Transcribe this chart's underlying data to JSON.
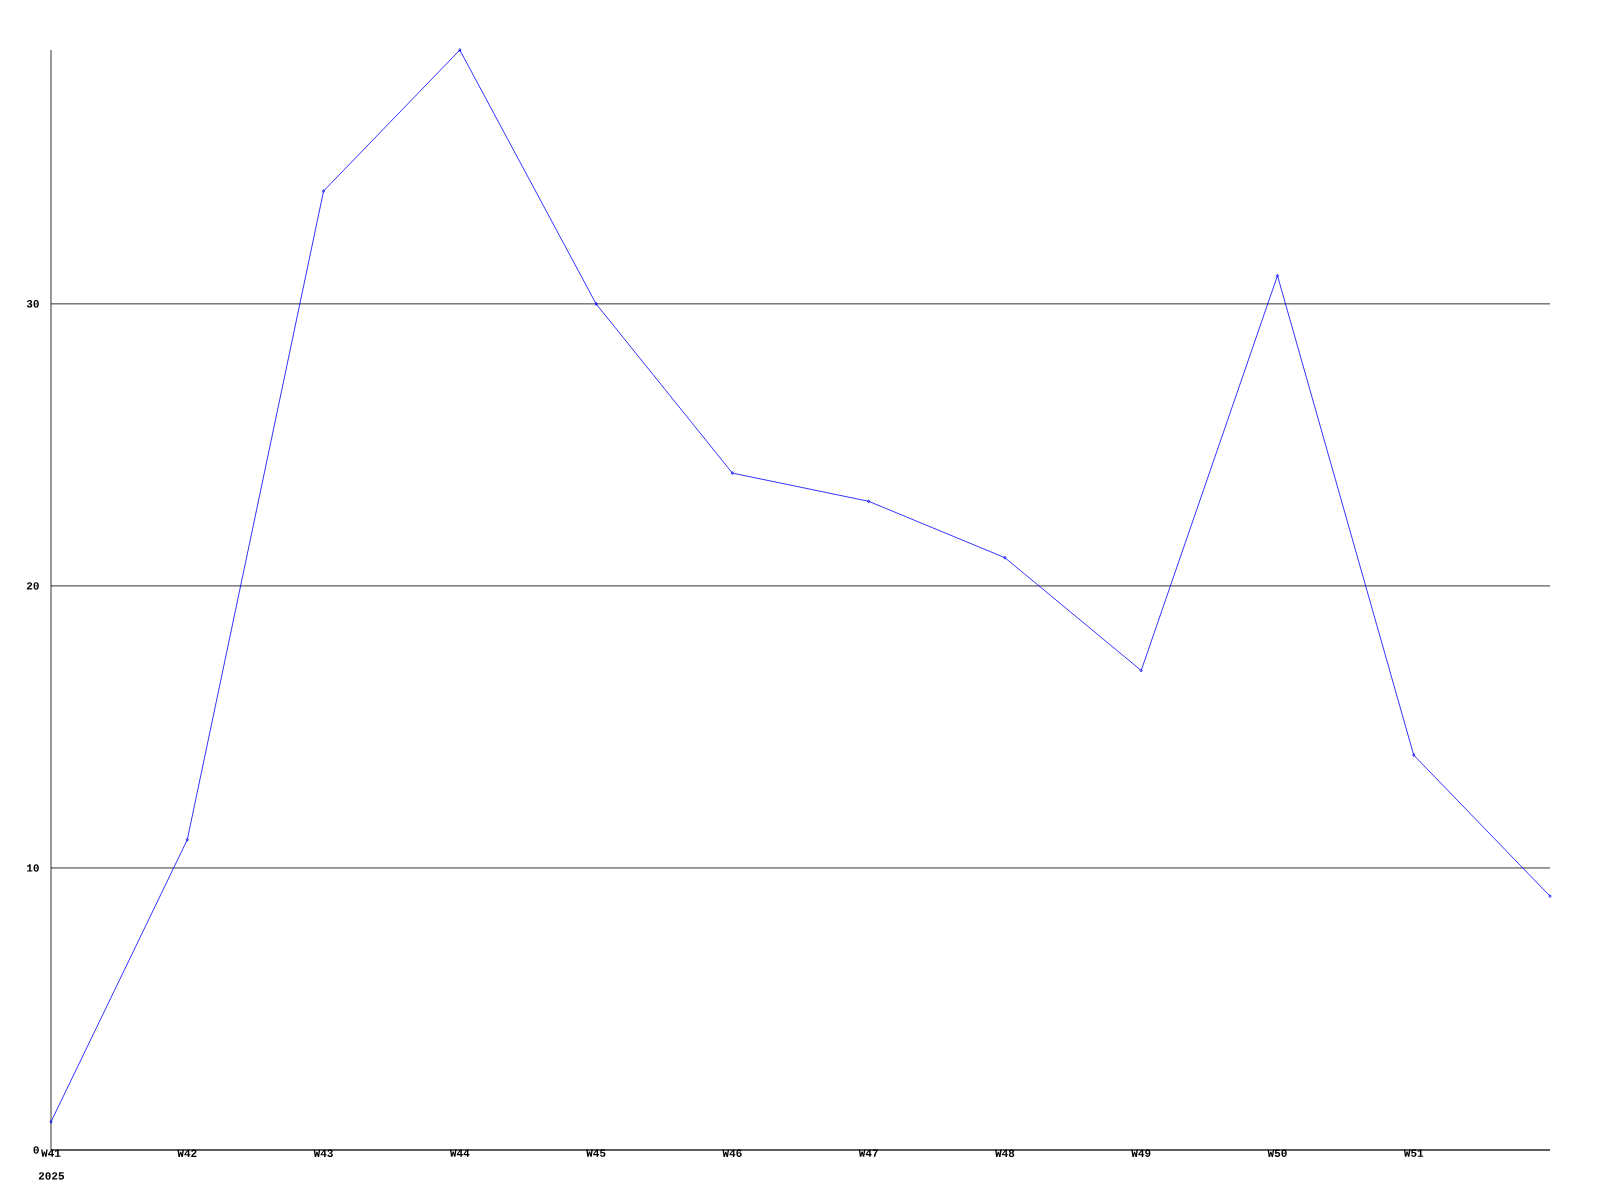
{
  "chart_data": {
    "type": "line",
    "categories": [
      "W41",
      "W42",
      "W43",
      "W44",
      "W45",
      "W46",
      "W47",
      "W48",
      "W49",
      "W50",
      "W51",
      null
    ],
    "series": [
      {
        "color": "#0000ff",
        "values": [
          1,
          11,
          34,
          39,
          30,
          24,
          23,
          21,
          17,
          31,
          14,
          9
        ]
      }
    ],
    "ylim": [
      0,
      39
    ],
    "yticks": [
      0,
      10,
      20,
      30
    ],
    "grid": "y",
    "marker": "diamond",
    "line_style": "solid",
    "annotations": [
      "2025"
    ]
  }
}
